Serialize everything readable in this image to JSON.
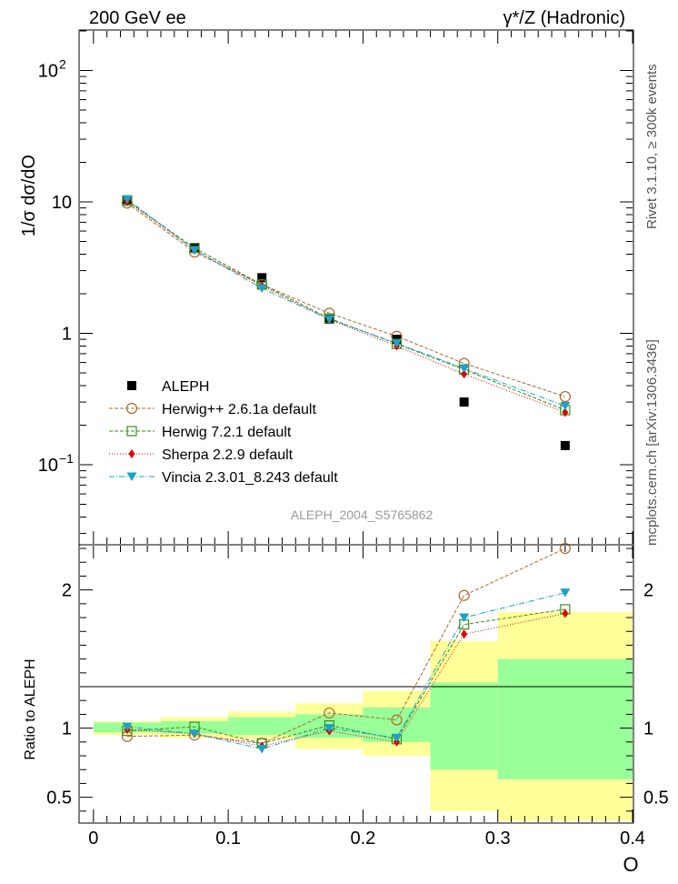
{
  "header": {
    "left": "200 GeV ee",
    "right": "γ*/Z (Hadronic)"
  },
  "side_text": {
    "rivet": "Rivet 3.1.10, ≥ 300k events",
    "source": "mcplots.cern.ch [arXiv:1306.3436]"
  },
  "watermark": "ALEPH_2004_S5765862",
  "colors": {
    "aleph": "#000000",
    "herwigpp": "#b0682a",
    "herwig7": "#3c8c1e",
    "sherpa": "#e00000",
    "vincia": "#1aa3c8",
    "band_yellow": "#ffff99",
    "band_green": "#99ff99"
  },
  "chart_data": [
    {
      "type": "scatter",
      "title": "",
      "ylabel": "1/σ  dσ/dO",
      "xlabel": "O",
      "yscale": "log",
      "ylim": [
        0.025,
        200
      ],
      "xlim": [
        -0.01,
        0.4
      ],
      "y_ticks": [
        {
          "v": 0.1,
          "label": "10",
          "exp": "−1"
        },
        {
          "v": 1,
          "label": "1",
          "exp": ""
        },
        {
          "v": 10,
          "label": "10",
          "exp": ""
        },
        {
          "v": 100,
          "label": "10",
          "exp": "2"
        }
      ],
      "legend": {
        "position": "bottom-left",
        "entries": [
          "ALEPH",
          "Herwig++ 2.6.1a default",
          "Herwig 7.2.1 default",
          "Sherpa 2.2.9 default",
          "Vincia 2.3.01_8.243 default"
        ]
      },
      "x": [
        0.025,
        0.075,
        0.125,
        0.175,
        0.225,
        0.275,
        0.35
      ],
      "series": [
        {
          "name": "ALEPH",
          "marker": "square",
          "values": [
            10.4,
            4.5,
            2.65,
            1.28,
            0.9,
            0.3,
            0.14
          ]
        },
        {
          "name": "Herwig++ 2.6.1a default",
          "marker": "circle",
          "values": [
            9.8,
            4.15,
            2.35,
            1.42,
            0.95,
            0.59,
            0.33
          ]
        },
        {
          "name": "Herwig 7.2.1 default",
          "marker": "square-open",
          "values": [
            10.2,
            4.45,
            2.35,
            1.3,
            0.83,
            0.53,
            0.26
          ]
        },
        {
          "name": "Sherpa 2.2.9 default",
          "marker": "diamond",
          "values": [
            10.1,
            4.3,
            2.3,
            1.27,
            0.8,
            0.49,
            0.25
          ]
        },
        {
          "name": "Vincia 2.3.01_8.243 default",
          "marker": "triangle-down",
          "values": [
            10.5,
            4.3,
            2.2,
            1.28,
            0.84,
            0.54,
            0.28
          ]
        }
      ]
    },
    {
      "type": "scatter",
      "ylabel": "Ratio to ALEPH",
      "xlabel": "O",
      "ylim": [
        0.32,
        2.32
      ],
      "xlim": [
        -0.01,
        0.4
      ],
      "y_ticks": [
        0.5,
        1,
        2
      ],
      "x_ticks": [
        0,
        0.1,
        0.2,
        0.3,
        0.4
      ],
      "x_tick_labels": [
        "0",
        "0.1",
        "0.2",
        "0.3",
        "0.4"
      ],
      "bins": [
        [
          0,
          0.05
        ],
        [
          0.05,
          0.1
        ],
        [
          0.1,
          0.15
        ],
        [
          0.15,
          0.2
        ],
        [
          0.2,
          0.25
        ],
        [
          0.25,
          0.3
        ],
        [
          0.3,
          0.4
        ]
      ],
      "band_yellow": [
        [
          0.95,
          1.05
        ],
        [
          0.93,
          1.08
        ],
        [
          0.92,
          1.12
        ],
        [
          0.85,
          1.18
        ],
        [
          0.8,
          1.27
        ],
        [
          0.4,
          1.63
        ],
        [
          0.33,
          1.84
        ]
      ],
      "band_green": [
        [
          0.97,
          1.04
        ],
        [
          0.96,
          1.05
        ],
        [
          0.95,
          1.08
        ],
        [
          0.93,
          1.1
        ],
        [
          0.9,
          1.15
        ],
        [
          0.7,
          1.33
        ],
        [
          0.63,
          1.5
        ]
      ],
      "x": [
        0.025,
        0.075,
        0.125,
        0.175,
        0.225,
        0.275,
        0.35
      ],
      "series": [
        {
          "name": "Herwig++ 2.6.1a default",
          "marker": "circle",
          "values": [
            0.94,
            0.95,
            0.89,
            1.11,
            1.06,
            1.96,
            2.3
          ]
        },
        {
          "name": "Herwig 7.2.1 default",
          "marker": "square-open",
          "values": [
            0.98,
            1.01,
            0.89,
            1.02,
            0.92,
            1.75,
            1.86
          ]
        },
        {
          "name": "Sherpa 2.2.9 default",
          "marker": "diamond",
          "values": [
            0.99,
            0.96,
            0.87,
            0.98,
            0.9,
            1.68,
            1.83
          ]
        },
        {
          "name": "Vincia 2.3.01_8.243 default",
          "marker": "triangle-down",
          "values": [
            1.01,
            0.96,
            0.85,
            1.0,
            0.93,
            1.8,
            1.98
          ]
        }
      ]
    }
  ]
}
